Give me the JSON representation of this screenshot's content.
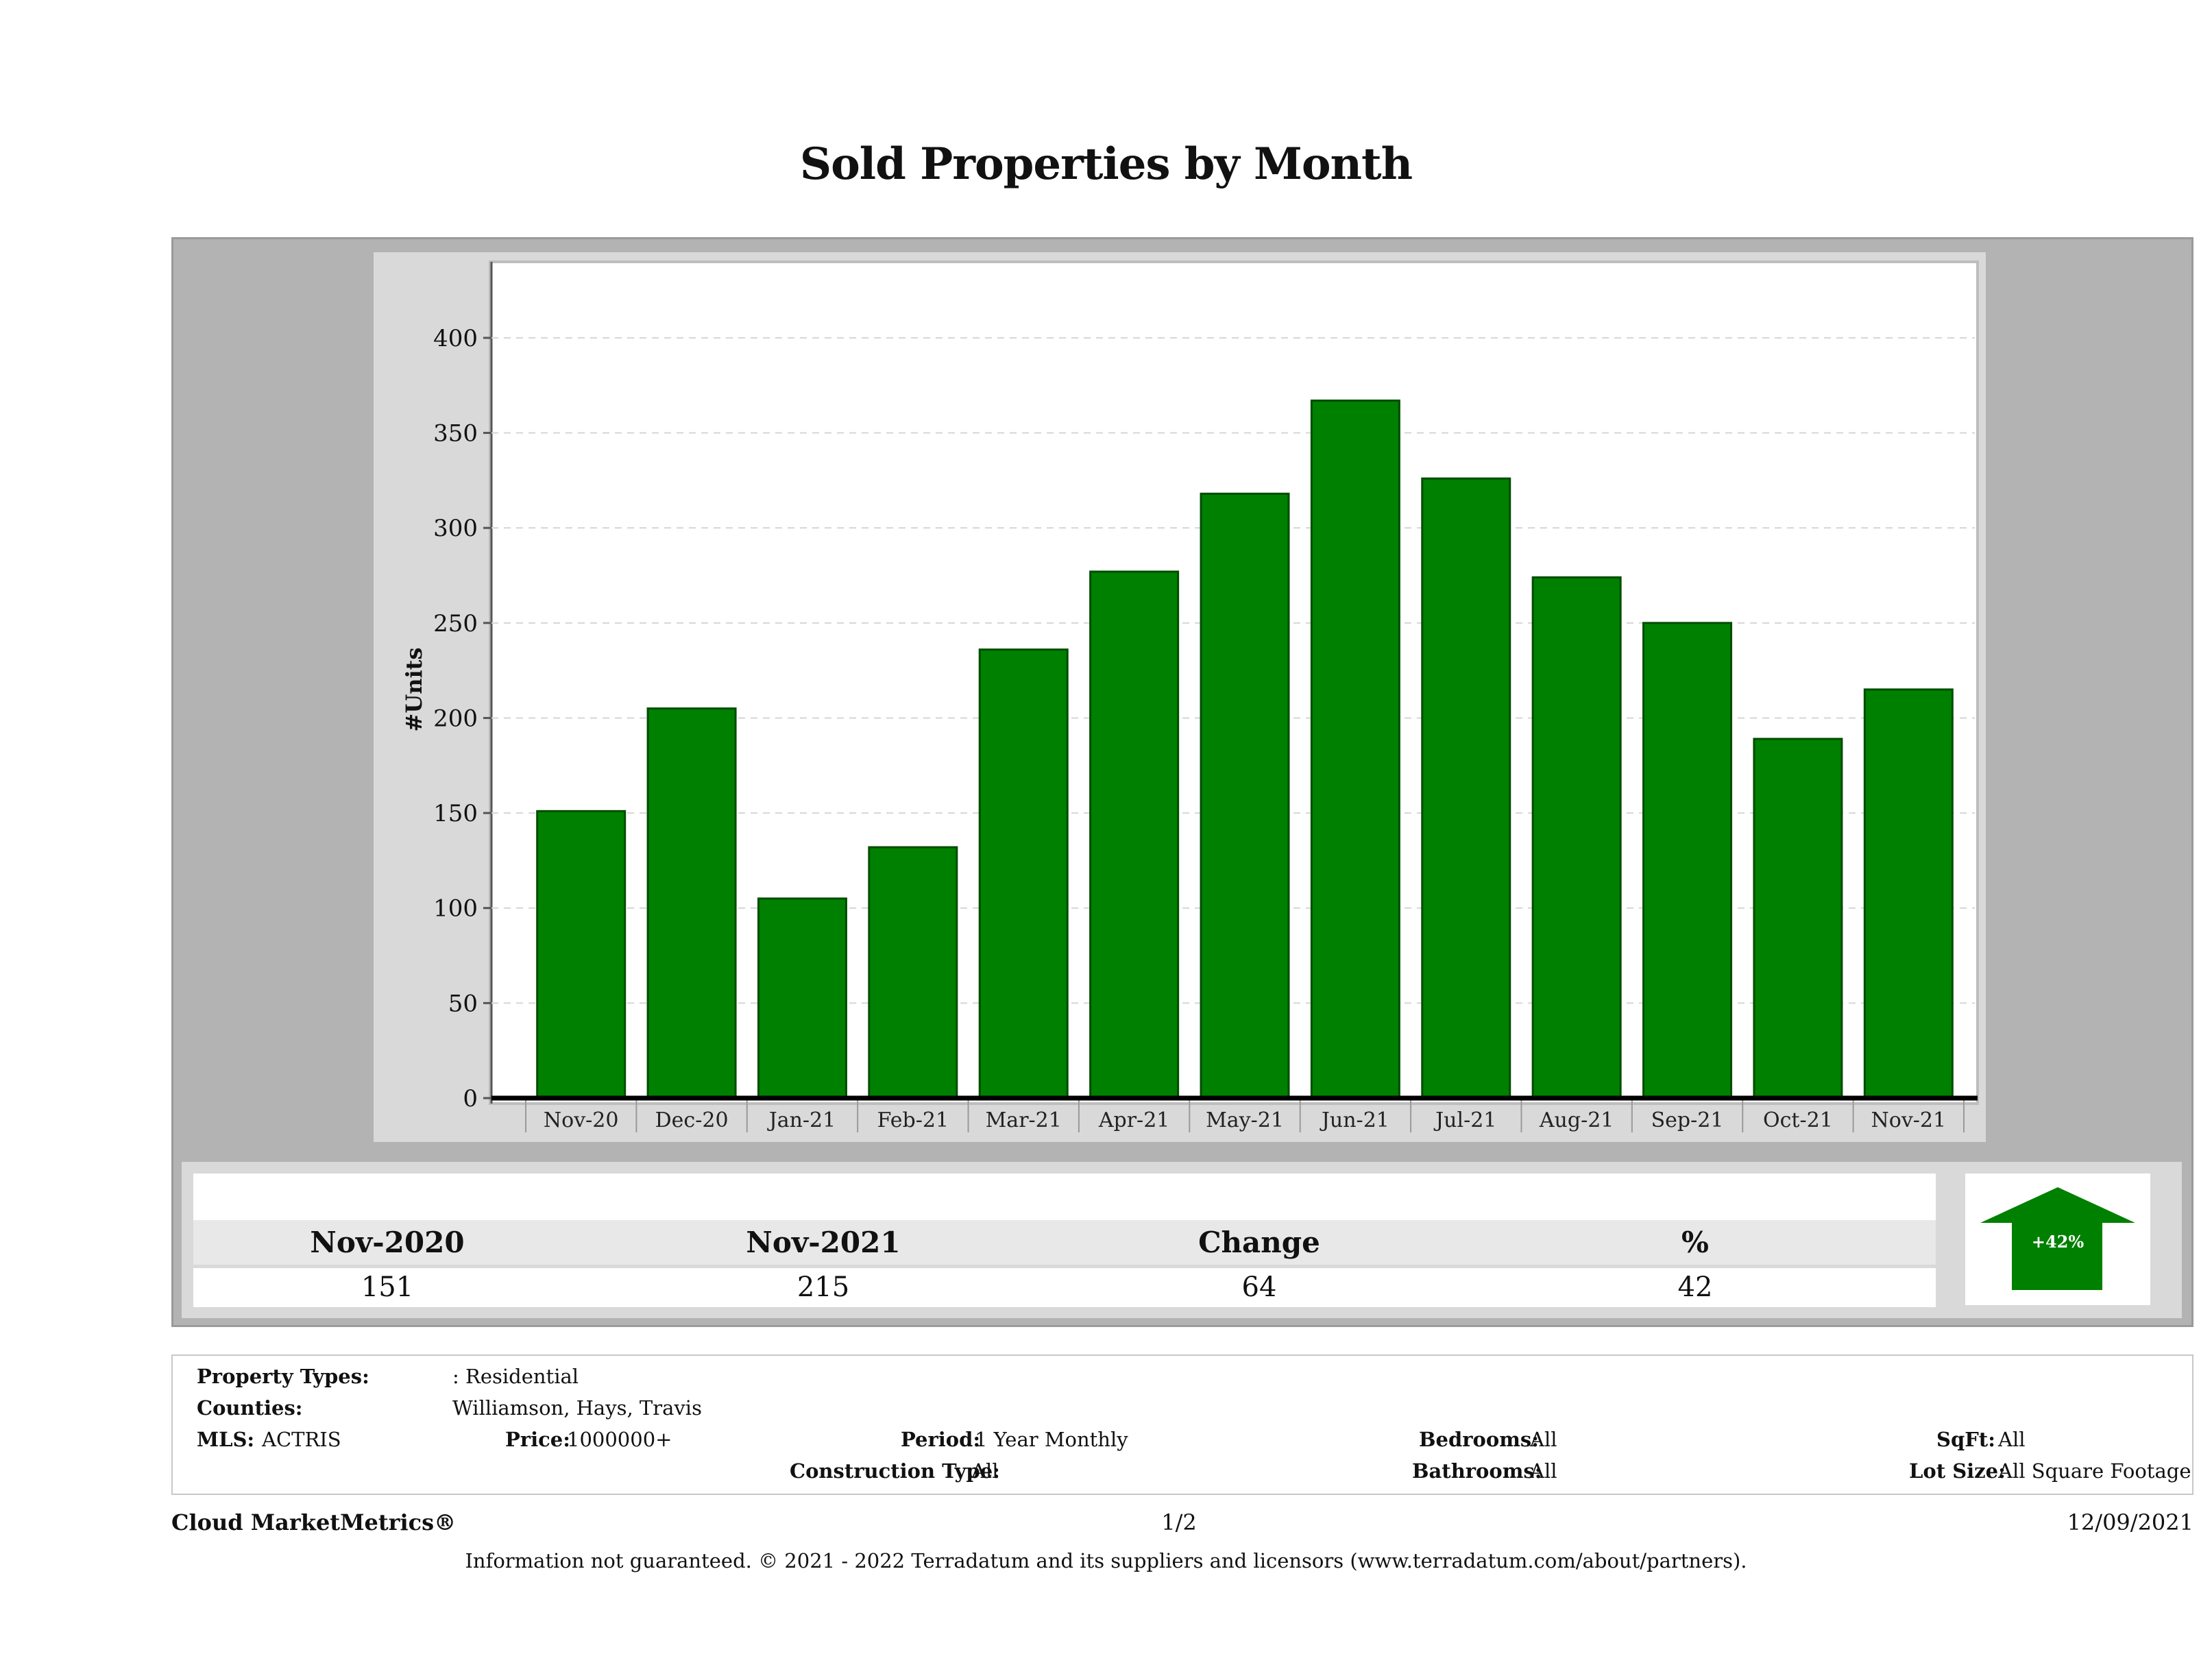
{
  "report": {
    "title": "Sold Properties by Month"
  },
  "chart_data": {
    "type": "bar",
    "categories": [
      "Nov-20",
      "Dec-20",
      "Jan-21",
      "Feb-21",
      "Mar-21",
      "Apr-21",
      "May-21",
      "Jun-21",
      "Jul-21",
      "Aug-21",
      "Sep-21",
      "Oct-21",
      "Nov-21"
    ],
    "values": [
      151,
      205,
      105,
      132,
      236,
      277,
      318,
      367,
      326,
      274,
      250,
      189,
      215
    ],
    "ylabel": "#Units",
    "xlabel": "",
    "ylim": [
      0,
      440
    ],
    "yticks": [
      0,
      50,
      100,
      150,
      200,
      250,
      300,
      350,
      400
    ],
    "bar_color": "#008000",
    "grid": true
  },
  "summary": {
    "columns": [
      {
        "label": "Nov-2020",
        "value": "151"
      },
      {
        "label": "Nov-2021",
        "value": "215"
      },
      {
        "label": "Change",
        "value": "64"
      },
      {
        "label": "%",
        "value": "42"
      }
    ],
    "badge": "+42%",
    "badge_color": "#008000",
    "badge_icon": "up-arrow-icon"
  },
  "filters": {
    "property_types_label": "Property Types:",
    "property_types_value": ": Residential",
    "counties_label": "Counties:",
    "counties_value": "Williamson, Hays, Travis",
    "mls_label": "MLS:",
    "mls_value": "ACTRIS",
    "price_label": "Price:",
    "price_value": "1000000+",
    "period_label": "Period:",
    "period_value": "1 Year Monthly",
    "construction_label": "Construction Type:",
    "construction_value": "All",
    "bedrooms_label": "Bedrooms:",
    "bedrooms_value": "All",
    "bathrooms_label": "Bathrooms:",
    "bathrooms_value": "All",
    "sqft_label": "SqFt:",
    "sqft_value": "All",
    "lotsize_label": "Lot Size:",
    "lotsize_value": "All Square Footage"
  },
  "footer": {
    "brand": "Cloud MarketMetrics®",
    "page": "1/2",
    "date": "12/09/2021",
    "disclaimer": "Information not guaranteed. © 2021 - 2022 Terradatum and its suppliers and licensors (www.terradatum.com/about/partners)."
  }
}
